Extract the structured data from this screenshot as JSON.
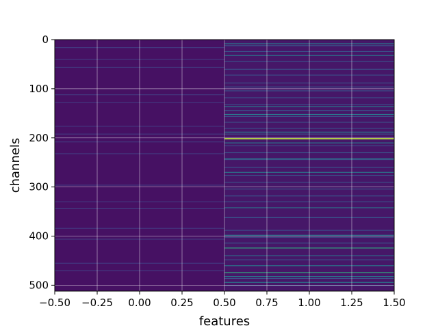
{
  "chart_data": {
    "type": "heatmap",
    "title": "",
    "xlabel": "features",
    "ylabel": "channels",
    "xlim": [
      -0.5,
      1.5
    ],
    "ylim": [
      512,
      0
    ],
    "y_inverted": true,
    "grid": true,
    "colormap": "viridis",
    "value_range": [
      0,
      1
    ],
    "x_ticks": [
      -0.5,
      -0.25,
      0.0,
      0.25,
      0.5,
      0.75,
      1.0,
      1.25,
      1.5
    ],
    "x_tick_labels": [
      "−0.50",
      "−0.25",
      "0.00",
      "0.25",
      "0.50",
      "0.75",
      "1.00",
      "1.25",
      "1.50"
    ],
    "y_ticks": [
      0,
      100,
      200,
      300,
      400,
      500
    ],
    "y_tick_labels": [
      "0",
      "100",
      "200",
      "300",
      "400",
      "500"
    ],
    "columns": [
      0,
      1
    ],
    "rows": 512,
    "base_level": [
      0.06,
      0.08
    ],
    "highlights": [
      {
        "column": 0,
        "rows": [
          16,
          40,
          56,
          112,
          128,
          176,
          192,
          208,
          232,
          296,
          330,
          344,
          384,
          406,
          455,
          470
        ],
        "value": 0.22
      },
      {
        "column": 1,
        "rows": [
          12,
          24,
          44,
          60,
          72,
          88,
          96,
          104,
          118,
          132,
          144,
          156,
          168,
          180,
          192,
          216,
          230,
          244,
          260,
          276,
          290,
          304,
          318,
          330,
          362,
          388,
          402,
          414,
          448,
          486,
          500
        ],
        "value": 0.33
      },
      {
        "column": 1,
        "rows": [
          8,
          32,
          136,
          152,
          188,
          210,
          242,
          270,
          342,
          398,
          440,
          460,
          482,
          494
        ],
        "value": 0.52
      },
      {
        "column": 1,
        "rows": [
          424,
          474
        ],
        "value": 0.72
      },
      {
        "column": 1,
        "rows": [
          201,
          202
        ],
        "value": 0.92
      }
    ]
  }
}
